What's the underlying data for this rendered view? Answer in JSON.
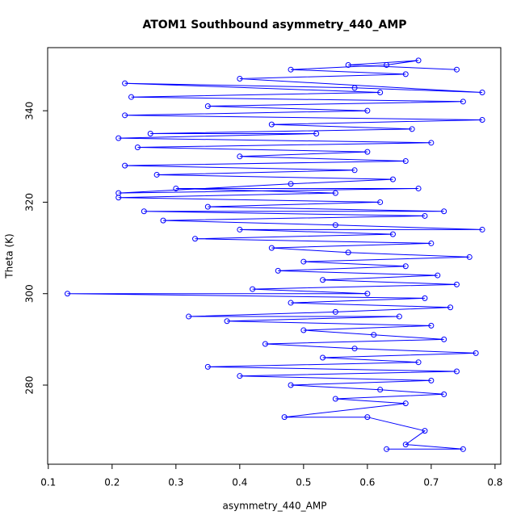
{
  "chart_data": {
    "type": "line",
    "title": "ATOM1 Southbound asymmetry_440_AMP",
    "x_label": "asymmetry_440_AMP",
    "y_label": "Theta (K)",
    "x": [
      0.63,
      0.75,
      0.66,
      0.69,
      0.6,
      0.47,
      0.66,
      0.55,
      0.72,
      0.62,
      0.48,
      0.7,
      0.4,
      0.74,
      0.35,
      0.68,
      0.53,
      0.77,
      0.58,
      0.44,
      0.72,
      0.61,
      0.5,
      0.7,
      0.38,
      0.65,
      0.32,
      0.55,
      0.73,
      0.48,
      0.69,
      0.13,
      0.6,
      0.42,
      0.74,
      0.53,
      0.71,
      0.46,
      0.66,
      0.5,
      0.76,
      0.57,
      0.45,
      0.7,
      0.33,
      0.64,
      0.4,
      0.78,
      0.55,
      0.28,
      0.69,
      0.25,
      0.72,
      0.35,
      0.62,
      0.21,
      0.55,
      0.3,
      0.68,
      0.21,
      0.48,
      0.64,
      0.27,
      0.58,
      0.22,
      0.66,
      0.4,
      0.6,
      0.24,
      0.7,
      0.21,
      0.52,
      0.26,
      0.67,
      0.45,
      0.78,
      0.22,
      0.6,
      0.35,
      0.75,
      0.23,
      0.62,
      0.22,
      0.58,
      0.78,
      0.4,
      0.66,
      0.48,
      0.63,
      0.68,
      0.57,
      0.74
    ],
    "values": [
      266,
      266,
      267,
      270,
      273,
      273,
      276,
      277,
      278,
      279,
      280,
      281,
      282,
      283,
      284,
      285,
      286,
      287,
      288,
      289,
      290,
      291,
      292,
      293,
      294,
      295,
      295,
      296,
      297,
      298,
      299,
      300,
      300,
      301,
      302,
      303,
      304,
      305,
      306,
      307,
      308,
      309,
      310,
      311,
      312,
      313,
      314,
      314,
      315,
      316,
      317,
      318,
      318,
      319,
      320,
      321,
      322,
      323,
      323,
      322,
      324,
      325,
      326,
      327,
      328,
      329,
      330,
      331,
      332,
      333,
      334,
      335,
      335,
      336,
      337,
      338,
      339,
      340,
      341,
      342,
      343,
      344,
      346,
      345,
      344,
      347,
      348,
      349,
      350,
      351,
      350,
      349
    ],
    "color": "#0000ff",
    "markers": true,
    "xlim": [
      0.099,
      0.809
    ],
    "xticks": [
      0.1,
      0.2,
      0.3,
      0.4,
      0.5,
      0.6,
      0.7,
      0.8
    ],
    "ylim": [
      262.7,
      353.8
    ],
    "yticks": [
      280,
      300,
      320,
      340
    ]
  }
}
